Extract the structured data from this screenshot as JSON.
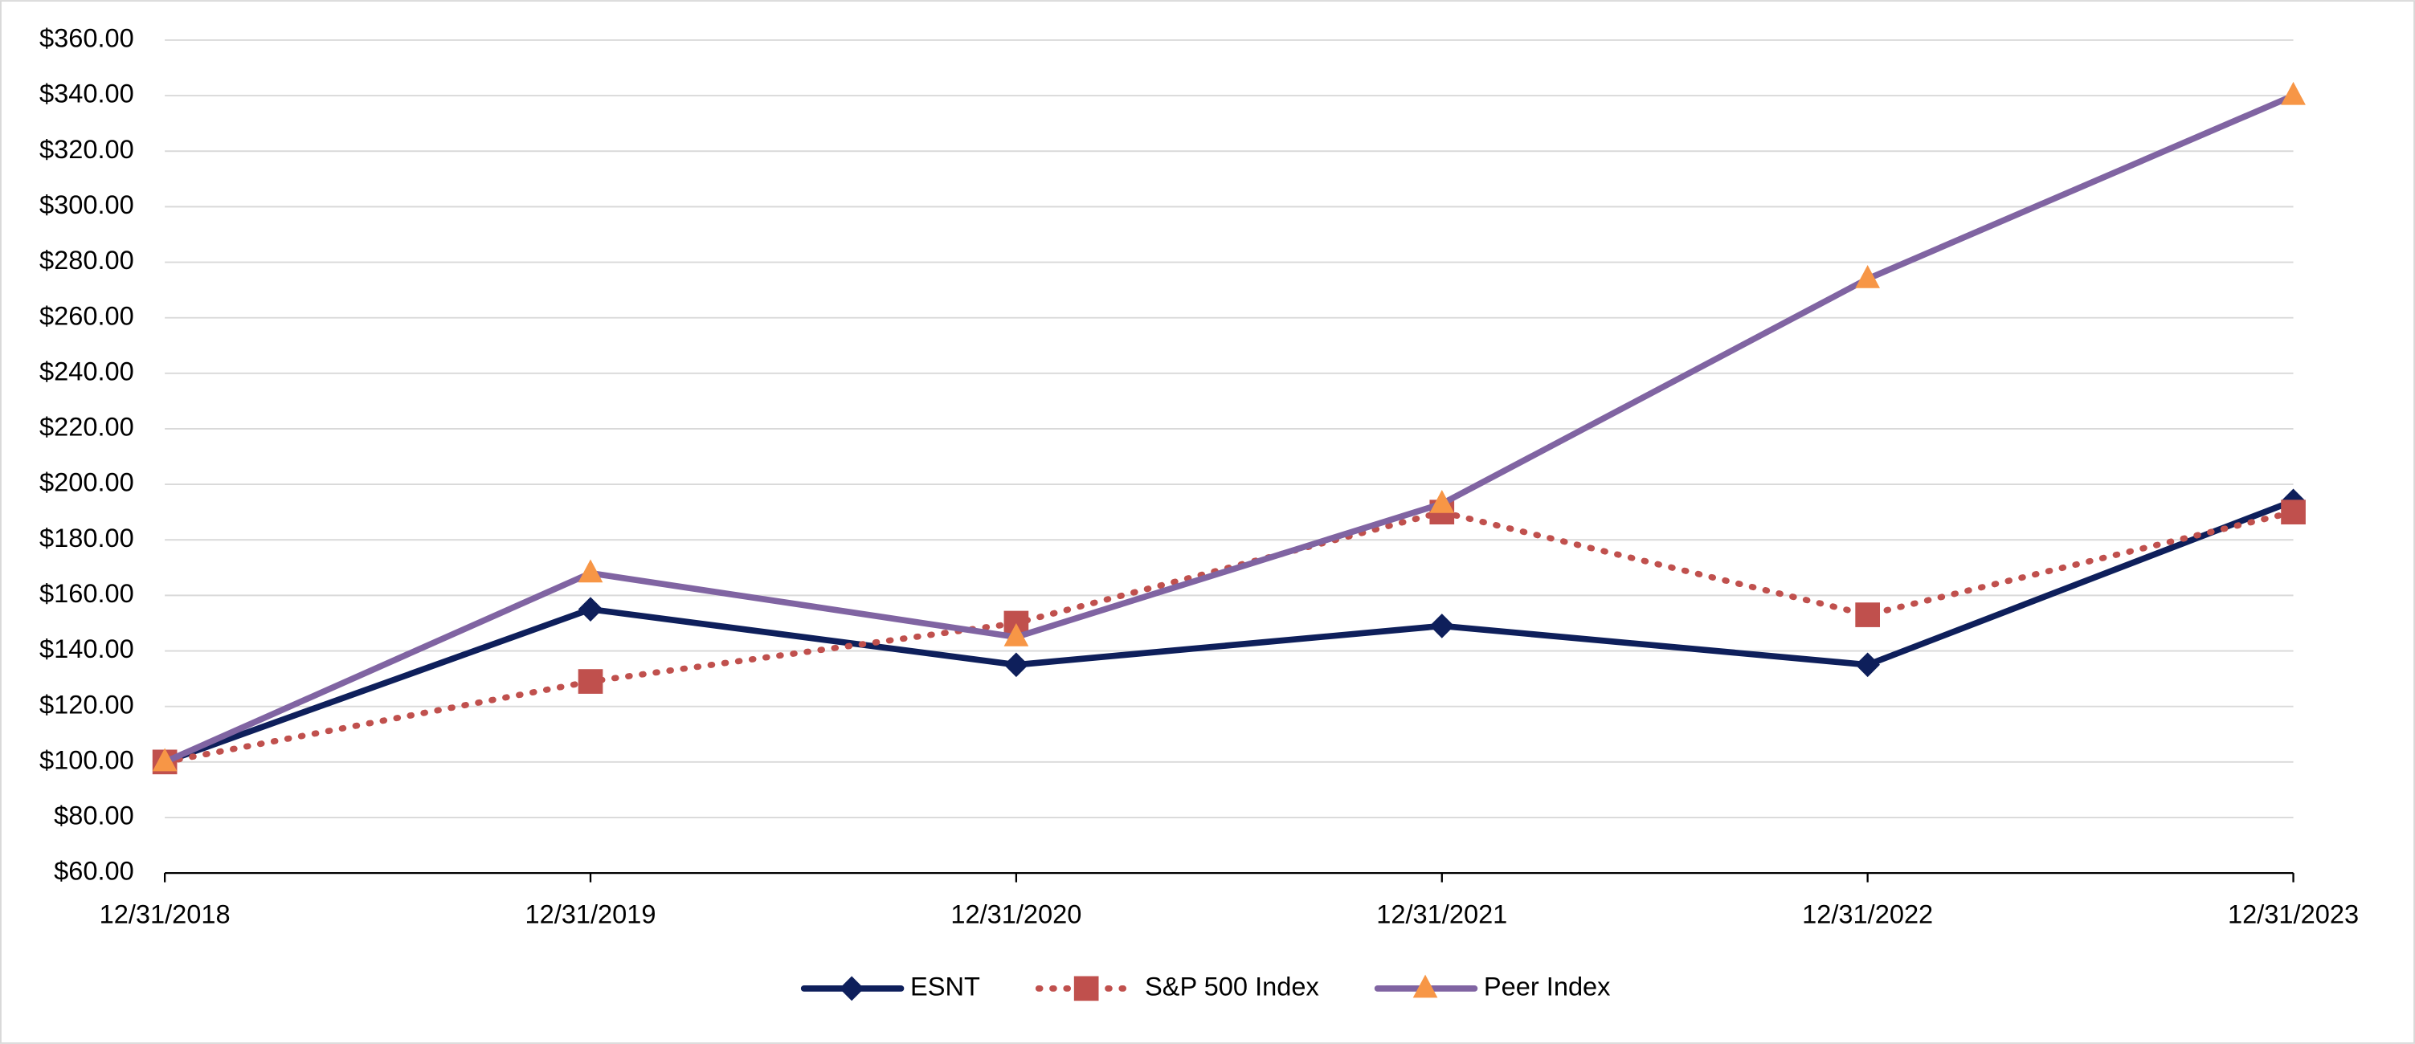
{
  "chart_data": {
    "type": "line",
    "categories": [
      "12/31/2018",
      "12/31/2019",
      "12/31/2020",
      "12/31/2021",
      "12/31/2022",
      "12/31/2023"
    ],
    "series": [
      {
        "name": "ESNT",
        "color": "#0e1f5b",
        "marker": "diamond",
        "dash": "solid",
        "values": [
          100,
          155,
          135,
          149,
          135,
          194
        ]
      },
      {
        "name": "S&P 500 Index",
        "color": "#c0504d",
        "marker": "square",
        "dash": "dotted",
        "values": [
          100,
          129,
          150,
          190,
          153,
          190
        ]
      },
      {
        "name": "Peer Index",
        "color": "#8064a2",
        "marker": "triangle",
        "marker_color": "#f79646",
        "dash": "solid",
        "values": [
          100,
          168,
          145,
          193,
          274,
          340
        ]
      }
    ],
    "ylim": [
      60,
      360
    ],
    "yticks": [
      {
        "value": 60,
        "label": "$60.00"
      },
      {
        "value": 80,
        "label": "$80.00"
      },
      {
        "value": 100,
        "label": "$100.00"
      },
      {
        "value": 120,
        "label": "$120.00"
      },
      {
        "value": 140,
        "label": "$140.00"
      },
      {
        "value": 160,
        "label": "$160.00"
      },
      {
        "value": 180,
        "label": "$180.00"
      },
      {
        "value": 200,
        "label": "$200.00"
      },
      {
        "value": 220,
        "label": "$220.00"
      },
      {
        "value": 240,
        "label": "$240.00"
      },
      {
        "value": 260,
        "label": "$260.00"
      },
      {
        "value": 280,
        "label": "$280.00"
      },
      {
        "value": 300,
        "label": "$300.00"
      },
      {
        "value": 320,
        "label": "$320.00"
      },
      {
        "value": 340,
        "label": "$340.00"
      },
      {
        "value": 360,
        "label": "$360.00"
      }
    ],
    "grid": true,
    "legend": "bottom"
  }
}
